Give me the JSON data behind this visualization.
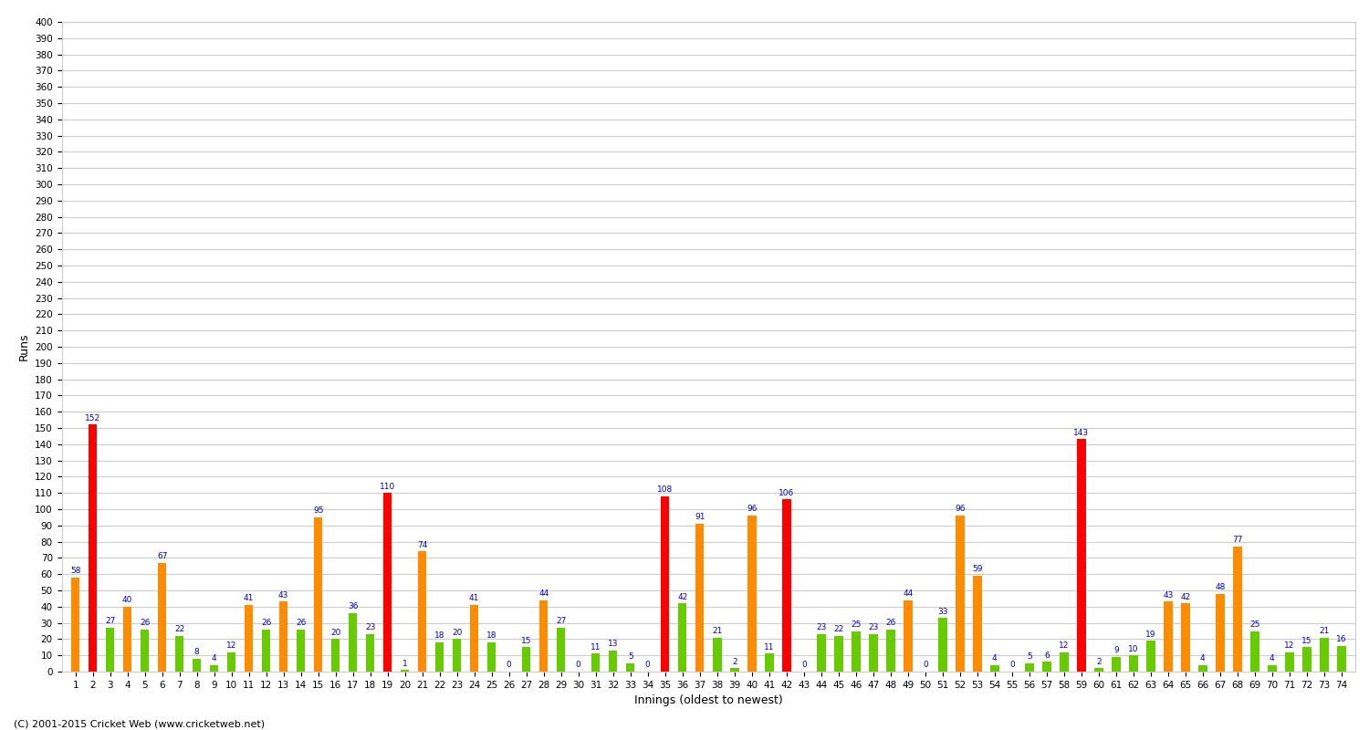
{
  "title": "",
  "xlabel": "Innings (oldest to newest)",
  "ylabel": "Runs",
  "ylim": [
    0,
    400
  ],
  "yticks": [
    0,
    10,
    20,
    30,
    40,
    50,
    60,
    70,
    80,
    90,
    100,
    110,
    120,
    130,
    140,
    150,
    160,
    170,
    180,
    190,
    200,
    210,
    220,
    230,
    240,
    250,
    260,
    270,
    280,
    290,
    300,
    310,
    320,
    330,
    340,
    350,
    360,
    370,
    380,
    390,
    400
  ],
  "copyright": "(C) 2001-2015 Cricket Web (www.cricketweb.net)",
  "innings": [
    1,
    2,
    3,
    4,
    5,
    6,
    7,
    8,
    9,
    10,
    11,
    12,
    13,
    14,
    15,
    16,
    17,
    18,
    19,
    20,
    21,
    22,
    23,
    24,
    25,
    26,
    27,
    28,
    29,
    30,
    31,
    32,
    33,
    34,
    35,
    36,
    37,
    38,
    39,
    40,
    41,
    42,
    43,
    44,
    45,
    46,
    47,
    48,
    49,
    50,
    51,
    52,
    53,
    54,
    55,
    56,
    57,
    58,
    59,
    60,
    61,
    62,
    63,
    64,
    65,
    66,
    67,
    68,
    69,
    70,
    71,
    72,
    73,
    74
  ],
  "values": [
    58,
    152,
    27,
    40,
    26,
    67,
    22,
    8,
    4,
    12,
    41,
    26,
    43,
    26,
    95,
    20,
    36,
    23,
    110,
    1,
    74,
    18,
    20,
    41,
    18,
    0,
    15,
    44,
    27,
    0,
    11,
    13,
    5,
    0,
    108,
    42,
    91,
    21,
    2,
    96,
    11,
    106,
    0,
    23,
    22,
    25,
    23,
    26,
    44,
    0,
    33,
    96,
    59,
    4,
    0,
    5,
    6,
    12,
    143,
    2,
    9,
    10,
    19,
    43,
    42,
    4,
    48,
    77,
    25,
    4,
    12,
    15,
    21,
    16
  ],
  "colors": [
    "orange",
    "red",
    "green",
    "orange",
    "green",
    "orange",
    "green",
    "green",
    "green",
    "green",
    "orange",
    "green",
    "orange",
    "green",
    "orange",
    "green",
    "green",
    "green",
    "red",
    "green",
    "orange",
    "green",
    "green",
    "orange",
    "green",
    "green",
    "green",
    "orange",
    "green",
    "green",
    "green",
    "green",
    "green",
    "green",
    "red",
    "green",
    "orange",
    "green",
    "green",
    "orange",
    "green",
    "red",
    "green",
    "green",
    "green",
    "green",
    "green",
    "green",
    "orange",
    "green",
    "green",
    "orange",
    "orange",
    "green",
    "green",
    "green",
    "green",
    "green",
    "red",
    "green",
    "green",
    "green",
    "green",
    "orange",
    "orange",
    "green",
    "orange",
    "orange",
    "green",
    "green",
    "green",
    "green",
    "green",
    "green"
  ],
  "color_red": "#ff0000",
  "color_orange": "#ff8c00",
  "color_green": "#66cc00",
  "bar_width": 0.5,
  "label_fontsize": 6.5,
  "tick_fontsize": 7.5,
  "axis_label_fontsize": 9,
  "background_color": "#ffffff",
  "grid_color": "#cccccc"
}
